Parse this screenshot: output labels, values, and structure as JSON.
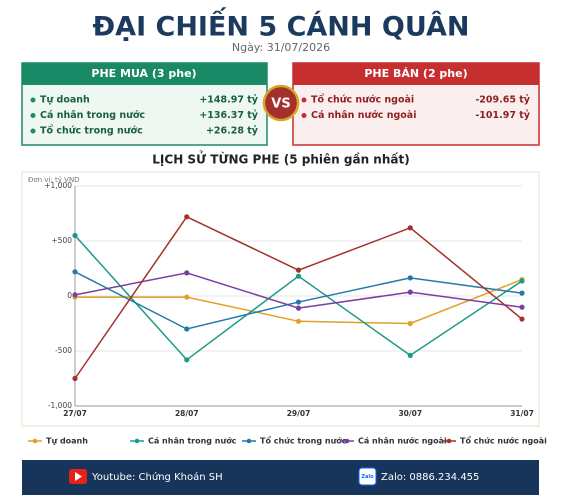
{
  "header": {
    "title": "ĐẠI CHIẾN 5 CÁNH QUÂN",
    "date": "Ngày: 31/07/2026"
  },
  "buy": {
    "header": "PHE MUA  (3 phe)",
    "items": [
      {
        "label": "Tự doanh",
        "value": "+148.97 tỷ"
      },
      {
        "label": "Cá nhân trong nước",
        "value": "+136.37 tỷ"
      },
      {
        "label": "Tổ chức trong nước",
        "value": "+26.28 tỷ"
      }
    ]
  },
  "vs": "VS",
  "sell": {
    "header": "PHE BÁN  (2 phe)",
    "items": [
      {
        "label": "Tổ chức nước ngoài",
        "value": "-209.65 tỷ"
      },
      {
        "label": "Cá nhân nước ngoài",
        "value": "-101.97 tỷ"
      }
    ]
  },
  "chart_data": {
    "type": "line",
    "title": "LỊCH SỬ TỪNG PHE (5 phiên gần nhất)",
    "unit": "Đơn vị: tỷ VND",
    "categories": [
      "27/07",
      "28/07",
      "29/07",
      "30/07",
      "31/07"
    ],
    "ylim": [
      -1000,
      1000
    ],
    "yticks": [
      {
        "value": 1000,
        "label": "+1,000"
      },
      {
        "value": 500,
        "label": "+500"
      },
      0,
      -500,
      {
        "value": -1000,
        "label": "-1,000"
      }
    ],
    "grid": true,
    "series": [
      {
        "name": "Tự doanh",
        "color": "#e0a126",
        "values": [
          -10,
          -10,
          -230,
          -250,
          148.97
        ]
      },
      {
        "name": "Cá nhân trong nước",
        "color": "#1a9a88",
        "values": [
          550,
          -580,
          180,
          -540,
          136.37
        ]
      },
      {
        "name": "Tổ chức trong nước",
        "color": "#2479a6",
        "values": [
          220,
          -300,
          -55,
          165,
          26.28
        ]
      },
      {
        "name": "Cá nhân nước ngoài",
        "color": "#7a3f9e",
        "values": [
          10,
          210,
          -110,
          35,
          -101.97
        ]
      },
      {
        "name": "Tổ chức nước ngoài",
        "color": "#a3302b",
        "values": [
          -750,
          720,
          235,
          620,
          -209.65
        ]
      }
    ]
  },
  "footer": {
    "youtube": "Youtube: Chứng Khoán SH",
    "zalo_icon": "Zalo",
    "zalo": "Zalo: 0886.234.455"
  }
}
